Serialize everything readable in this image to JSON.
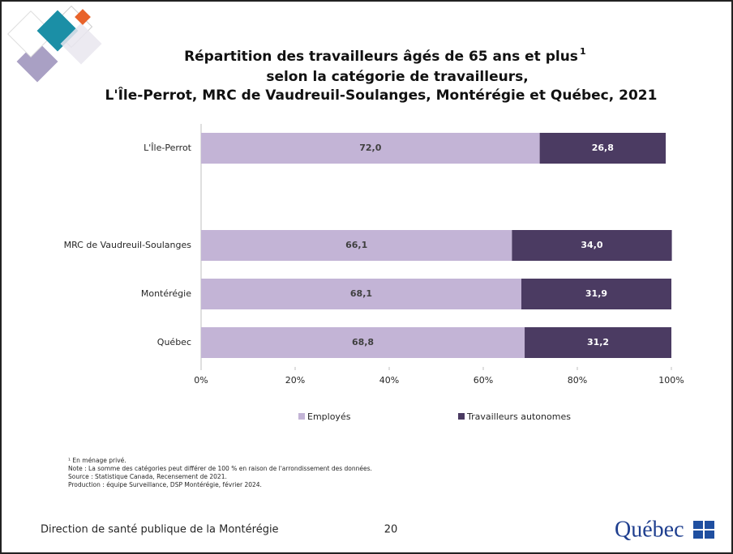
{
  "chart_data": {
    "type": "stacked-bar-horizontal",
    "title_lines": [
      "Répartition des travailleurs âgés de 65 ans et plus",
      "selon la catégorie de travailleurs,",
      "L'Île-Perrot, MRC de Vaudreuil-Soulanges, Montérégie et Québec, 2021"
    ],
    "title_note_marker": "1",
    "categories": [
      "L'Île-Perrot",
      null,
      "MRC de Vaudreuil-Soulanges",
      "Montérégie",
      "Québec"
    ],
    "series": [
      {
        "name": "Employés",
        "color": "#c3b4d6",
        "label_color": "#404040",
        "values": [
          72.0,
          null,
          66.1,
          68.1,
          68.8
        ],
        "value_labels": [
          "72,0",
          null,
          "66,1",
          "68,1",
          "68,8"
        ]
      },
      {
        "name": "Travailleurs autonomes",
        "color": "#4b3b62",
        "label_color": "#ffffff",
        "values": [
          26.8,
          null,
          34.0,
          31.9,
          31.2
        ],
        "value_labels": [
          "26,8",
          null,
          "34,0",
          "31,9",
          "31,2"
        ]
      }
    ],
    "xlim": [
      0,
      100
    ],
    "xticks": [
      {
        "value": 0,
        "label": "0%"
      },
      {
        "value": 20,
        "label": "20%"
      },
      {
        "value": 40,
        "label": "40%"
      },
      {
        "value": 60,
        "label": "60%"
      },
      {
        "value": 80,
        "label": "80%"
      },
      {
        "value": 100,
        "label": "100%"
      }
    ],
    "legend": "bottom",
    "footnotes": [
      "¹ En ménage privé.",
      "Note : La somme des catégories peut différer de 100 % en raison de l'arrondissement des données.",
      "Source : Statistique Canada, Recensement de 2021.",
      "Production : équipe Surveillance, DSP Montérégie, février 2024."
    ]
  },
  "footer": {
    "organization": "Direction de santé publique de la Montérégie",
    "page": "20",
    "logo": "Québec"
  }
}
